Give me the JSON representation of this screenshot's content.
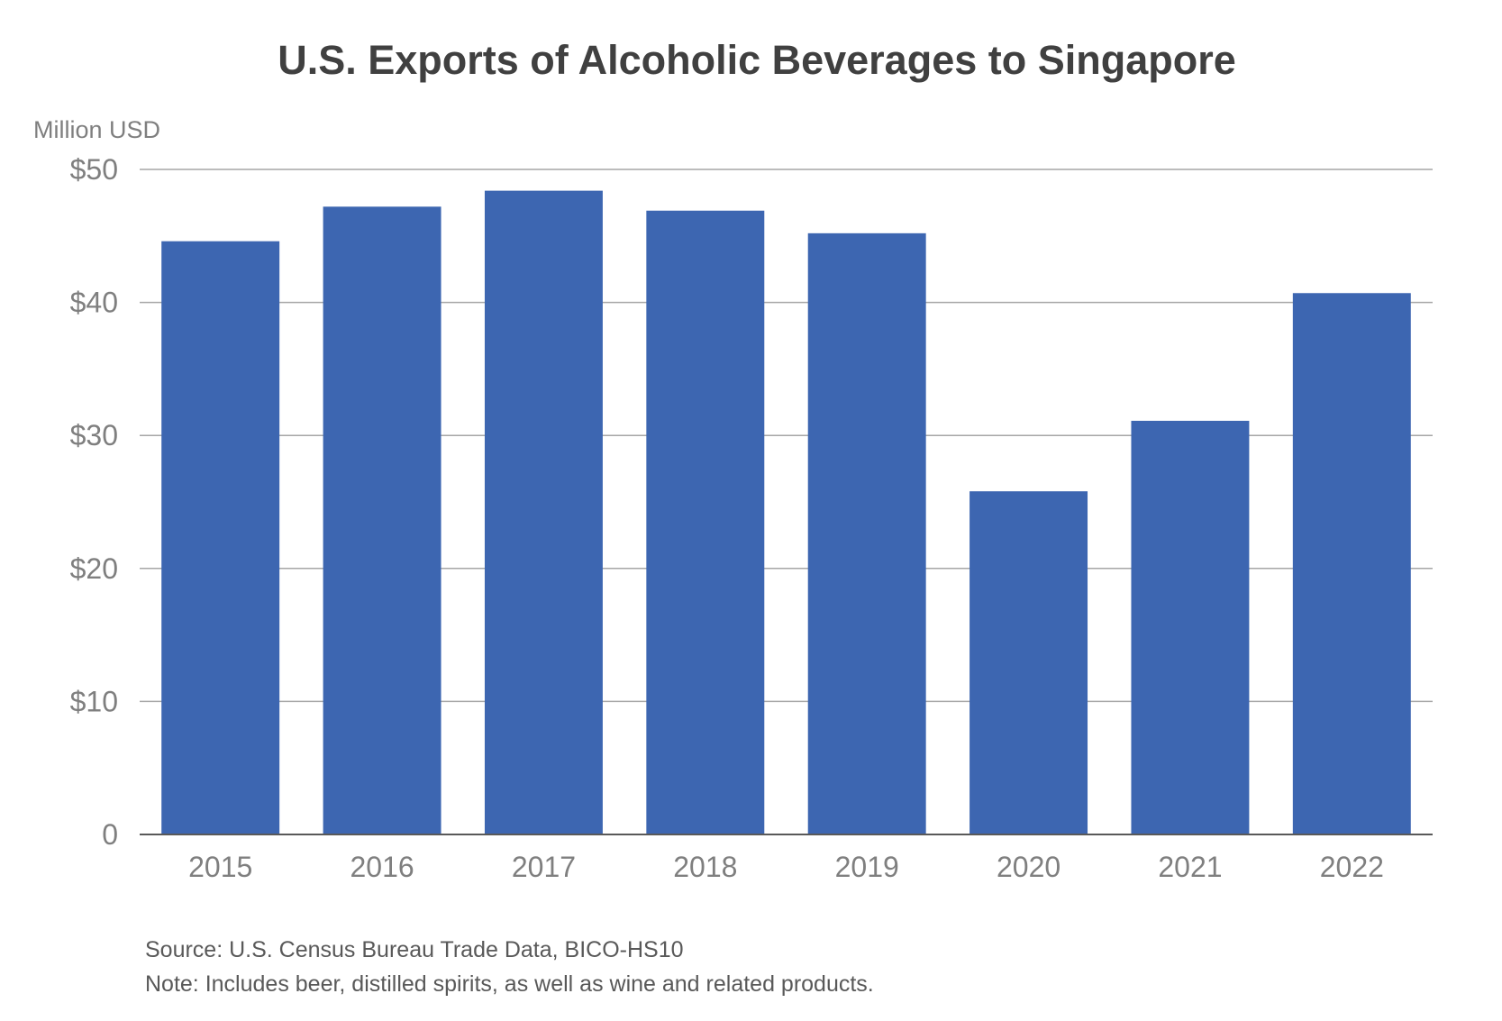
{
  "chart_data": {
    "type": "bar",
    "title": "U.S. Exports of Alcoholic Beverages to Singapore",
    "ylabel": "Million USD",
    "xlabel": "",
    "categories": [
      "2015",
      "2016",
      "2017",
      "2018",
      "2019",
      "2020",
      "2021",
      "2022"
    ],
    "values": [
      44.6,
      47.2,
      48.4,
      46.9,
      45.2,
      25.8,
      31.1,
      40.7
    ],
    "ylim": [
      0,
      50
    ],
    "yticks": [
      0,
      10,
      20,
      30,
      40,
      50
    ],
    "ytick_labels": [
      "0",
      "$10",
      "$20",
      "$30",
      "$40",
      "$50"
    ],
    "grid": true,
    "legend": "none",
    "bar_color": "#3d66b1",
    "gridline_color": "#a6a6a6",
    "axis_color": "#595959"
  },
  "notes": {
    "source": "Source: U.S. Census Bureau Trade Data, BICO-HS10",
    "note": "Note: Includes beer, distilled spirits, as well as wine and related products."
  }
}
